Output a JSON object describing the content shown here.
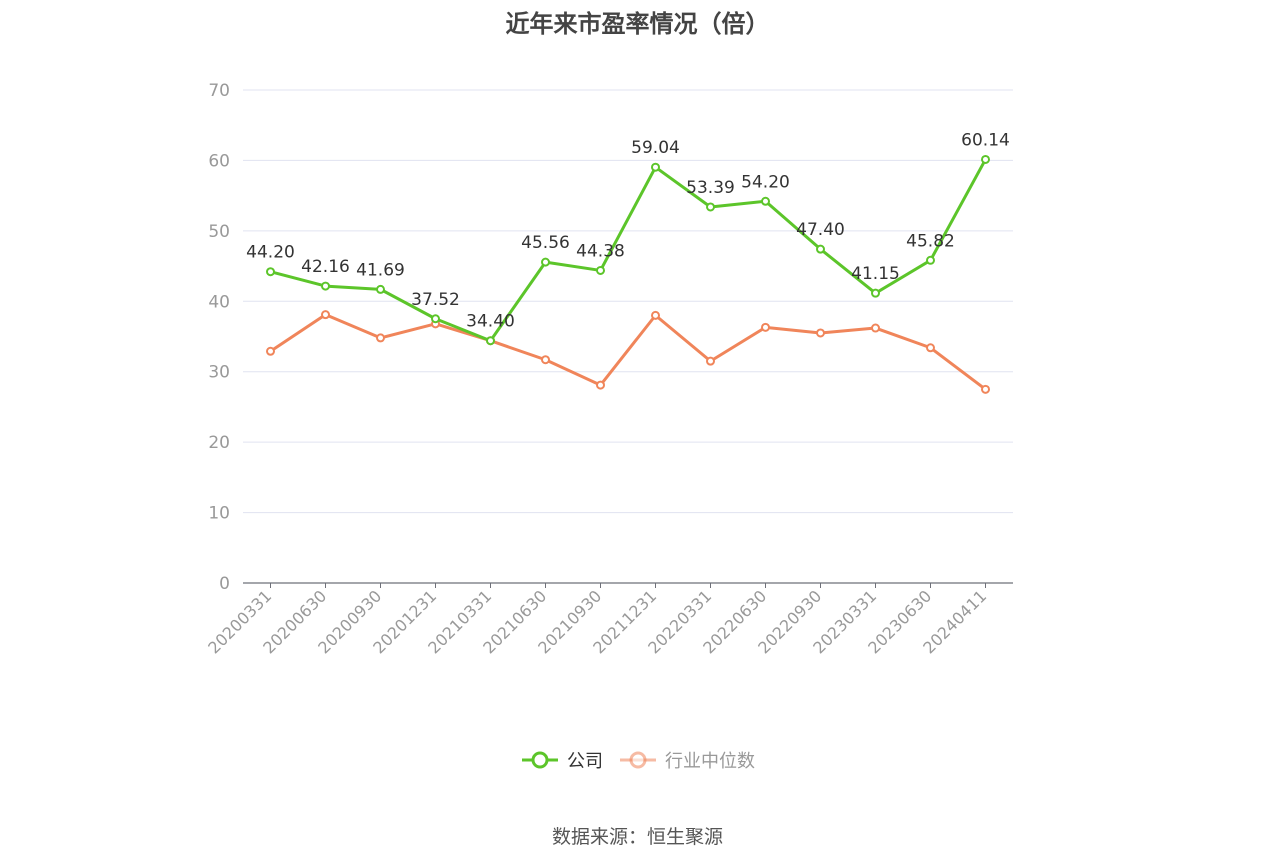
{
  "title": "近年来市盈率情况（倍）",
  "source": "数据来源：恒生聚源",
  "chart_data": {
    "type": "line",
    "title": "近年来市盈率情况（倍）",
    "categories": [
      "20200331",
      "20200630",
      "20200930",
      "20201231",
      "20210331",
      "20210630",
      "20210930",
      "20211231",
      "20220331",
      "20220630",
      "20220930",
      "20230331",
      "20230630",
      "20240411"
    ],
    "ylim": [
      0,
      70
    ],
    "yticks": [
      0,
      10,
      20,
      30,
      40,
      50,
      60,
      70
    ],
    "grid": true,
    "legend_position": "bottom",
    "series": [
      {
        "name": "公司",
        "color": "#5cc52a",
        "values": [
          44.2,
          42.16,
          41.69,
          37.52,
          34.4,
          45.56,
          44.38,
          59.04,
          53.39,
          54.2,
          47.4,
          41.15,
          45.82,
          60.14
        ],
        "labels": [
          "44.20",
          "42.16",
          "41.69",
          "37.52",
          "34.40",
          "45.56",
          "44.38",
          "59.04",
          "53.39",
          "54.20",
          "47.40",
          "41.15",
          "45.82",
          "60.14"
        ]
      },
      {
        "name": "行业中位数",
        "color": "#f0855a",
        "values": [
          32.9,
          38.1,
          34.8,
          36.8,
          34.4,
          31.7,
          28.1,
          38.0,
          31.5,
          36.3,
          35.5,
          36.2,
          33.4,
          27.5
        ]
      }
    ]
  }
}
